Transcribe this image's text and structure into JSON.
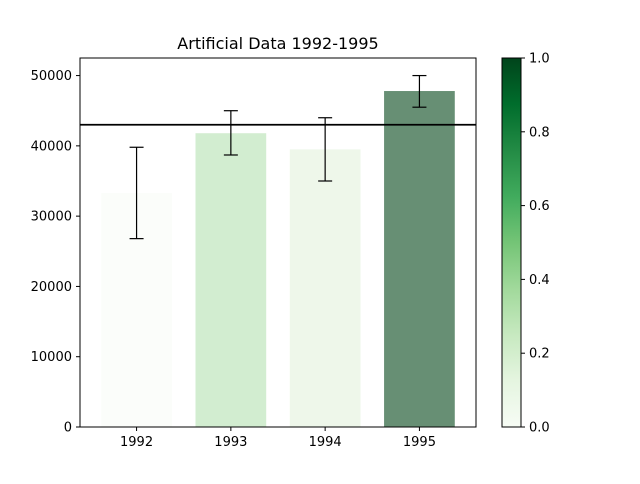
{
  "chart_data": {
    "type": "bar",
    "title": "Artificial Data 1992-1995",
    "xlabel": "",
    "ylabel": "",
    "categories": [
      "1992",
      "1993",
      "1994",
      "1995"
    ],
    "values": [
      33300,
      41800,
      39500,
      47800
    ],
    "error_low": [
      26800,
      38700,
      35000,
      45500
    ],
    "error_high": [
      39800,
      45000,
      44000,
      50000
    ],
    "bar_colors": [
      "#fbfdfa",
      "#d2edd0",
      "#eef7ea",
      "#678f74"
    ],
    "reference_line": 43000,
    "ylim": [
      0,
      52500
    ],
    "yticks": [
      0,
      10000,
      20000,
      30000,
      40000,
      50000
    ],
    "ytick_labels": [
      "0",
      "10000",
      "20000",
      "30000",
      "40000",
      "50000"
    ],
    "grid": false,
    "colorbar": {
      "range": [
        0.0,
        1.0
      ],
      "ticks": [
        0.0,
        0.2,
        0.4,
        0.6,
        0.8,
        1.0
      ],
      "tick_labels": [
        "0.0",
        "0.2",
        "0.4",
        "0.6",
        "0.8",
        "1.0"
      ],
      "colormap": "Greens",
      "colors": [
        "#f7fcf5",
        "#e5f5e0",
        "#c7e9c0",
        "#a1d99b",
        "#74c476",
        "#41ab5d",
        "#238b45",
        "#006d2c",
        "#00441b"
      ]
    }
  }
}
